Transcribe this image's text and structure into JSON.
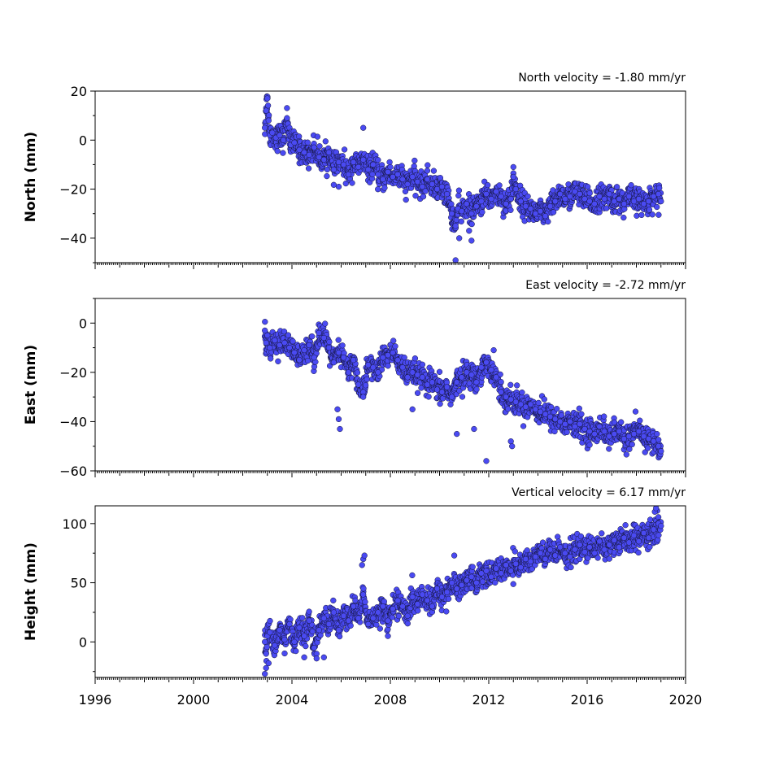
{
  "chart_data": [
    {
      "type": "scatter",
      "title": "North velocity = -1.80 mm/yr",
      "ylabel": "North (mm)",
      "xlim": [
        1996,
        2020
      ],
      "ylim": [
        -50,
        20
      ],
      "yticks": [
        20,
        0,
        -20,
        -40
      ],
      "yticklabels": [
        "20",
        "0",
        "−20",
        "−40"
      ],
      "series": [
        {
          "marker_color": "#4a4af2",
          "x": [
            2002.9,
            2002.95,
            2003.0,
            2003.05,
            2003.1,
            2003.2,
            2003.35,
            2003.5,
            2003.65,
            2003.8,
            2003.95,
            2004.1,
            2004.3,
            2004.5,
            2004.7,
            2004.9,
            2005.1,
            2005.3,
            2005.5,
            2005.7,
            2005.9,
            2006.1,
            2006.3,
            2006.5,
            2006.7,
            2006.9,
            2007.1,
            2007.3,
            2007.5,
            2007.7,
            2007.9,
            2008.1,
            2008.3,
            2008.5,
            2008.7,
            2008.9,
            2009.1,
            2009.3,
            2009.5,
            2009.7,
            2009.9,
            2010.1,
            2010.3,
            2010.5,
            2010.65,
            2010.75,
            2010.9,
            2011.1,
            2011.3,
            2011.5,
            2011.7,
            2011.9,
            2012.1,
            2012.3,
            2012.5,
            2012.7,
            2012.9,
            2013.0,
            2013.1,
            2013.3,
            2013.5,
            2013.7,
            2013.9,
            2014.1,
            2014.3,
            2014.5,
            2014.7,
            2014.9,
            2015.1,
            2015.3,
            2015.5,
            2015.7,
            2015.9,
            2016.1,
            2016.3,
            2016.5,
            2016.7,
            2016.9,
            2017.1,
            2017.3,
            2017.5,
            2017.7,
            2017.9,
            2018.1,
            2018.3,
            2018.5,
            2018.7,
            2018.9,
            2019.0
          ],
          "y": [
            5,
            12,
            17,
            8,
            2,
            3,
            1,
            2,
            0,
            9,
            -2,
            -1,
            -4,
            -5,
            -6,
            -3,
            -7,
            -8,
            -5,
            -12,
            -9,
            -10,
            -14,
            -9,
            -11,
            -8,
            -12,
            -10,
            -14,
            -16,
            -13,
            -15,
            -14,
            -16,
            -18,
            -15,
            -17,
            -19,
            -16,
            -18,
            -20,
            -19,
            -22,
            -30,
            -35,
            -28,
            -29,
            -26,
            -30,
            -27,
            -25,
            -22,
            -24,
            -21,
            -23,
            -26,
            -24,
            -15,
            -20,
            -25,
            -27,
            -28,
            -30,
            -29,
            -31,
            -27,
            -25,
            -22,
            -24,
            -23,
            -21,
            -22,
            -24,
            -25,
            -26,
            -23,
            -24,
            -22,
            -25,
            -24,
            -26,
            -23,
            -25,
            -24,
            -26,
            -25,
            -23,
            -22,
            -25
          ],
          "outliers_x": [
            2010.65,
            2010.8,
            2011.2,
            2011.3,
            2005.9,
            2006.9,
            2013.0
          ],
          "outliers_y": [
            -49,
            -40,
            -37,
            -41,
            -19,
            5,
            -11
          ]
        }
      ]
    },
    {
      "type": "scatter",
      "title": "East velocity = -2.72 mm/yr",
      "ylabel": "East (mm)",
      "xlim": [
        1996,
        2020
      ],
      "ylim": [
        -60,
        10
      ],
      "yticks": [
        0,
        -20,
        -40,
        -60
      ],
      "yticklabels": [
        "0",
        "−20",
        "−40",
        "−60"
      ],
      "series": [
        {
          "marker_color": "#4a4af2",
          "x": [
            2002.9,
            2002.95,
            2003.0,
            2003.1,
            2003.3,
            2003.5,
            2003.7,
            2003.9,
            2004.1,
            2004.3,
            2004.5,
            2004.7,
            2004.9,
            2005.1,
            2005.3,
            2005.5,
            2005.7,
            2005.9,
            2006.1,
            2006.3,
            2006.5,
            2006.7,
            2006.9,
            2007.1,
            2007.3,
            2007.5,
            2007.7,
            2007.9,
            2008.1,
            2008.3,
            2008.5,
            2008.7,
            2008.9,
            2009.1,
            2009.3,
            2009.5,
            2009.7,
            2009.9,
            2010.1,
            2010.3,
            2010.5,
            2010.7,
            2010.9,
            2011.1,
            2011.3,
            2011.5,
            2011.7,
            2011.9,
            2012.1,
            2012.3,
            2012.5,
            2012.7,
            2012.9,
            2013.1,
            2013.3,
            2013.5,
            2013.7,
            2013.9,
            2014.1,
            2014.3,
            2014.5,
            2014.7,
            2014.9,
            2015.1,
            2015.3,
            2015.5,
            2015.7,
            2015.9,
            2016.1,
            2016.3,
            2016.5,
            2016.7,
            2016.9,
            2017.1,
            2017.3,
            2017.5,
            2017.7,
            2017.9,
            2018.1,
            2018.3,
            2018.5,
            2018.7,
            2018.9,
            2019.0
          ],
          "y": [
            -3,
            -8,
            -5,
            -10,
            -7,
            -9,
            -8,
            -10,
            -12,
            -15,
            -11,
            -9,
            -14,
            -4,
            -6,
            -10,
            -16,
            -12,
            -14,
            -20,
            -15,
            -25,
            -28,
            -17,
            -18,
            -20,
            -14,
            -13,
            -12,
            -15,
            -18,
            -22,
            -20,
            -21,
            -22,
            -25,
            -24,
            -27,
            -28,
            -26,
            -30,
            -24,
            -22,
            -20,
            -21,
            -24,
            -18,
            -16,
            -19,
            -22,
            -28,
            -30,
            -31,
            -32,
            -33,
            -34,
            -33,
            -35,
            -36,
            -37,
            -38,
            -39,
            -40,
            -41,
            -40,
            -42,
            -41,
            -43,
            -44,
            -45,
            -42,
            -44,
            -46,
            -45,
            -44,
            -47,
            -46,
            -45,
            -44,
            -46,
            -47,
            -48,
            -50,
            -52
          ],
          "outliers_x": [
            2005.85,
            2005.9,
            2005.95,
            2006.9,
            2008.9,
            2010.7,
            2011.4,
            2011.9,
            2012.2,
            2012.9,
            2012.95
          ],
          "outliers_y": [
            -35,
            -39,
            -43,
            -30,
            -35,
            -45,
            -43,
            -56,
            -11,
            -48,
            -50
          ]
        }
      ]
    },
    {
      "type": "scatter",
      "title": "Vertical velocity = 6.17 mm/yr",
      "ylabel": "Height (mm)",
      "xlim": [
        1996,
        2020
      ],
      "ylim": [
        -30,
        115
      ],
      "xticks": [
        1996,
        2000,
        2004,
        2008,
        2012,
        2016,
        2020
      ],
      "xticklabels": [
        "1996",
        "2000",
        "2004",
        "2008",
        "2012",
        "2016",
        "2020"
      ],
      "yticks": [
        100,
        50,
        0
      ],
      "yticklabels": [
        "100",
        "50",
        "0"
      ],
      "series": [
        {
          "marker_color": "#4a4af2",
          "x": [
            2002.9,
            2002.95,
            2003.0,
            2003.1,
            2003.3,
            2003.5,
            2003.7,
            2003.9,
            2004.1,
            2004.3,
            2004.5,
            2004.7,
            2004.9,
            2005.1,
            2005.3,
            2005.5,
            2005.7,
            2005.9,
            2006.1,
            2006.3,
            2006.5,
            2006.7,
            2006.9,
            2007.1,
            2007.3,
            2007.5,
            2007.7,
            2007.9,
            2008.1,
            2008.3,
            2008.5,
            2008.7,
            2008.9,
            2009.1,
            2009.3,
            2009.5,
            2009.7,
            2009.9,
            2010.1,
            2010.3,
            2010.5,
            2010.7,
            2010.9,
            2011.1,
            2011.3,
            2011.5,
            2011.7,
            2011.9,
            2012.1,
            2012.3,
            2012.5,
            2012.7,
            2012.9,
            2013.1,
            2013.3,
            2013.5,
            2013.7,
            2013.9,
            2014.1,
            2014.3,
            2014.5,
            2014.7,
            2014.9,
            2015.1,
            2015.3,
            2015.5,
            2015.7,
            2015.9,
            2016.1,
            2016.3,
            2016.5,
            2016.7,
            2016.9,
            2017.1,
            2017.3,
            2017.5,
            2017.7,
            2017.9,
            2018.1,
            2018.3,
            2018.5,
            2018.7,
            2018.9,
            2019.0
          ],
          "y": [
            0,
            -10,
            5,
            8,
            -3,
            10,
            2,
            15,
            0,
            12,
            5,
            18,
            -5,
            10,
            20,
            15,
            25,
            10,
            22,
            18,
            30,
            20,
            40,
            15,
            20,
            25,
            30,
            18,
            28,
            35,
            30,
            22,
            38,
            32,
            40,
            35,
            30,
            45,
            38,
            42,
            50,
            45,
            48,
            52,
            55,
            50,
            58,
            60,
            55,
            62,
            58,
            65,
            60,
            66,
            63,
            70,
            68,
            72,
            75,
            70,
            78,
            73,
            80,
            75,
            72,
            78,
            82,
            76,
            80,
            75,
            85,
            78,
            82,
            86,
            80,
            88,
            84,
            90,
            85,
            92,
            88,
            95,
            100,
            98
          ],
          "outliers_x": [
            2002.9,
            2002.95,
            2003.05,
            2006.85,
            2006.9,
            2006.95,
            2010.6,
            2018.75,
            2018.8,
            2007.9,
            2004.5,
            2005.0,
            2005.3
          ],
          "outliers_y": [
            -27,
            -22,
            -18,
            65,
            70,
            73,
            73,
            110,
            113,
            5,
            -13,
            -14,
            -13
          ]
        }
      ]
    }
  ]
}
